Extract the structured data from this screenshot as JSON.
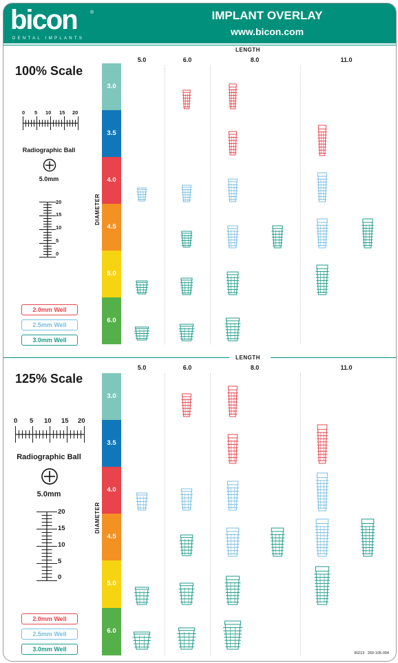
{
  "header": {
    "brand": "bicon",
    "brand_sub": "DENTAL IMPLANTS",
    "registered": "®",
    "title": "IMPLANT OVERLAY",
    "website": "www.bicon.com"
  },
  "colors": {
    "header_teal": "#00907c",
    "well_2_0": "#e5464e",
    "well_2_5": "#79bde0",
    "well_3_0": "#1e9a89",
    "diameter_3_0": "#7fc7bd",
    "diameter_3_5": "#1177bb",
    "diameter_4_0": "#e9434b",
    "diameter_4_5": "#f39122",
    "diameter_5_0": "#f7d411",
    "diameter_6_0": "#56b049"
  },
  "axis": {
    "length_label": "LENGTH",
    "diameter_label": "DIAMETER",
    "lengths": [
      "5.0",
      "6.0",
      "8.0",
      "11.0"
    ],
    "diameters": [
      "3.0",
      "3.5",
      "4.0",
      "4.5",
      "5.0",
      "6.0"
    ]
  },
  "sections": [
    {
      "id": "scale-100",
      "title": "100% Scale",
      "ruler_ticks": [
        "0",
        "5",
        "10",
        "15",
        "20"
      ],
      "ball_label": "Radiographic Ball",
      "ball_size": "5.0mm"
    },
    {
      "id": "scale-125",
      "title": "125% Scale",
      "ruler_ticks": [
        "0",
        "5",
        "10",
        "15",
        "20"
      ],
      "ball_label": "Radiographic Ball",
      "ball_size": "5.0mm"
    }
  ],
  "legend": {
    "well_2_0": "2.0mm Well",
    "well_2_5": "2.5mm Well",
    "well_3_0": "3.0mm Well"
  },
  "footer": {
    "code1": "RI213",
    "code2": "260-105-004"
  }
}
